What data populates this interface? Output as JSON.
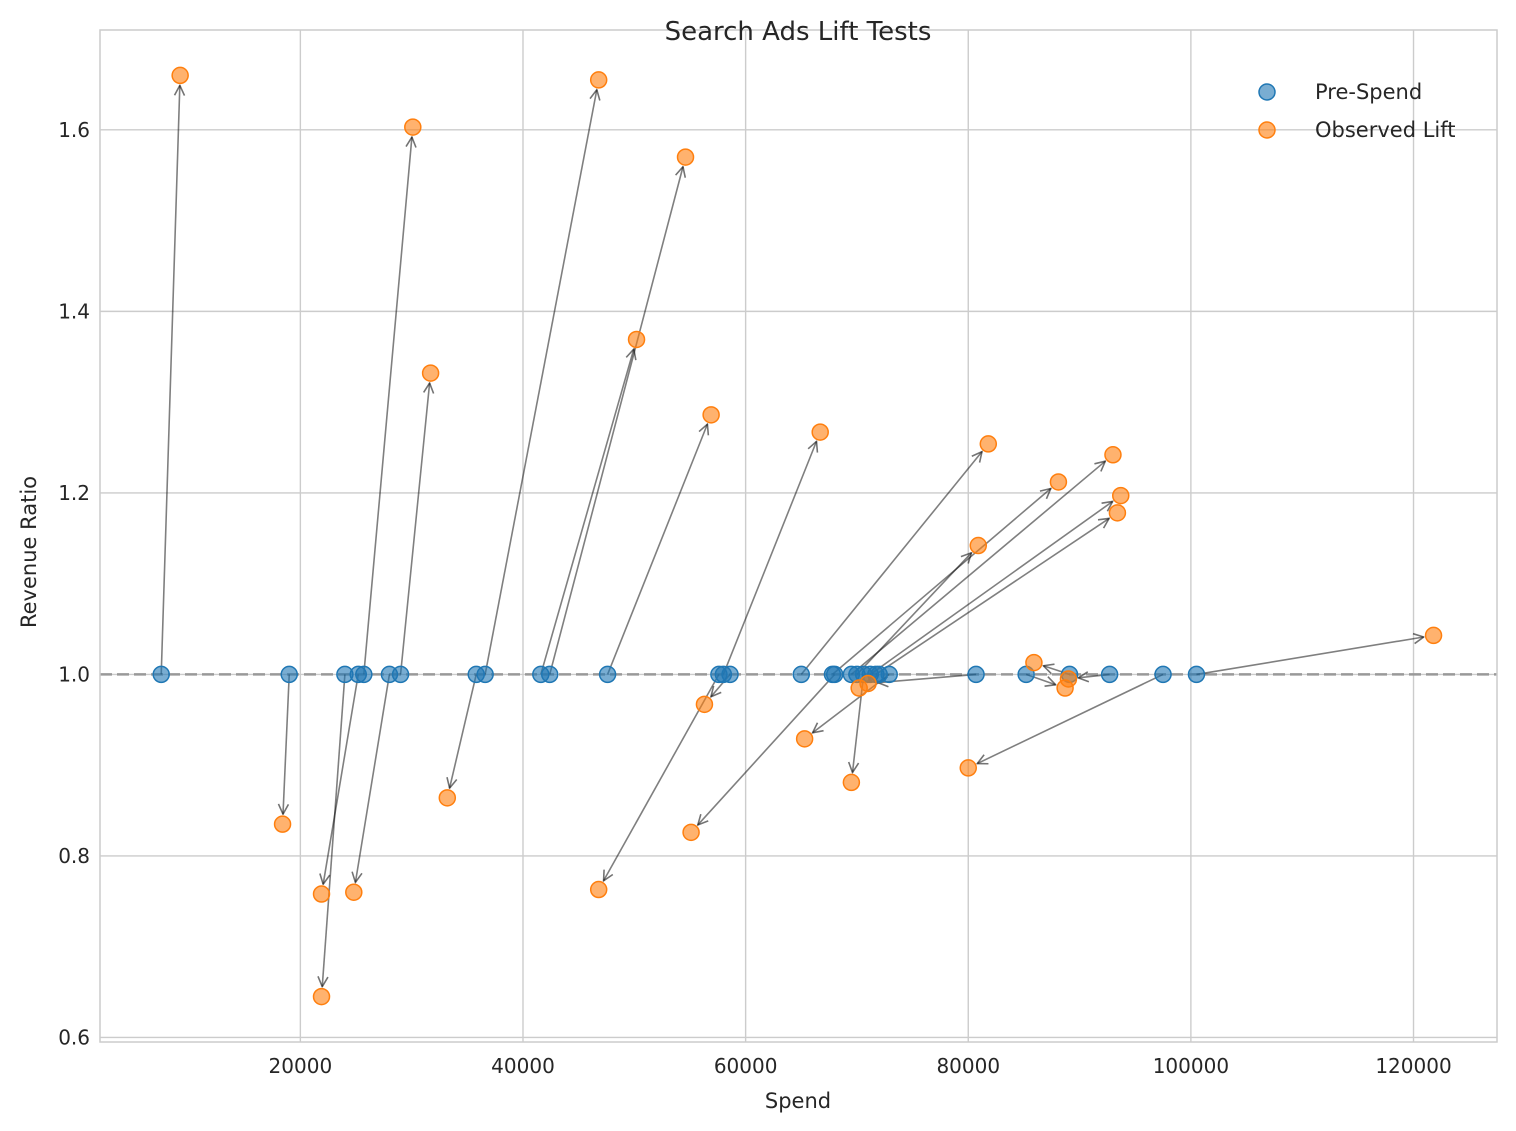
{
  "chart_data": {
    "type": "scatter",
    "title": "Search Ads Lift Tests",
    "xlabel": "Spend",
    "ylabel": "Revenue Ratio",
    "xlim": [
      2000,
      127500
    ],
    "ylim": [
      0.595,
      1.71
    ],
    "xticks": [
      20000,
      40000,
      60000,
      80000,
      100000,
      120000
    ],
    "yticks": [
      0.6,
      0.8,
      1.0,
      1.2,
      1.4,
      1.6
    ],
    "xtick_labels": [
      "20000",
      "40000",
      "60000",
      "80000",
      "100000",
      "120000"
    ],
    "ytick_labels": [
      "0.6",
      "0.8",
      "1.0",
      "1.2",
      "1.4",
      "1.6"
    ],
    "grid": true,
    "legend": "top-right",
    "reference_line": {
      "y": 1.0,
      "style": "dashed",
      "color": "#999999"
    },
    "series": [
      {
        "name": "Pre-Spend",
        "color": "#1f77b4"
      },
      {
        "name": "Observed Lift",
        "color": "#ff7f0e"
      }
    ],
    "tests": [
      {
        "pre": [
          7500,
          1.0
        ],
        "post": [
          9200,
          1.66
        ]
      },
      {
        "pre": [
          19000,
          1.0
        ],
        "post": [
          18400,
          0.835
        ]
      },
      {
        "pre": [
          24000,
          1.0
        ],
        "post": [
          21900,
          0.645
        ]
      },
      {
        "pre": [
          25200,
          1.0
        ],
        "post": [
          21900,
          0.758
        ]
      },
      {
        "pre": [
          25700,
          1.0
        ],
        "post": [
          30100,
          1.603
        ]
      },
      {
        "pre": [
          28000,
          1.0
        ],
        "post": [
          24800,
          0.76
        ]
      },
      {
        "pre": [
          29000,
          1.0
        ],
        "post": [
          31700,
          1.332
        ]
      },
      {
        "pre": [
          35800,
          1.0
        ],
        "post": [
          33200,
          0.864
        ]
      },
      {
        "pre": [
          36600,
          1.0
        ],
        "post": [
          46800,
          1.655
        ]
      },
      {
        "pre": [
          41600,
          1.0
        ],
        "post": [
          50200,
          1.369
        ]
      },
      {
        "pre": [
          42400,
          1.0
        ],
        "post": [
          54600,
          1.57
        ]
      },
      {
        "pre": [
          47600,
          1.0
        ],
        "post": [
          56900,
          1.286
        ]
      },
      {
        "pre": [
          57600,
          1.0
        ],
        "post": [
          46800,
          0.763
        ]
      },
      {
        "pre": [
          58000,
          1.0
        ],
        "post": [
          66700,
          1.267
        ]
      },
      {
        "pre": [
          58600,
          1.0
        ],
        "post": [
          56300,
          0.967
        ]
      },
      {
        "pre": [
          65000,
          1.0
        ],
        "post": [
          81800,
          1.254
        ]
      },
      {
        "pre": [
          67800,
          1.0
        ],
        "post": [
          88100,
          1.212
        ]
      },
      {
        "pre": [
          68000,
          1.0
        ],
        "post": [
          55100,
          0.826
        ]
      },
      {
        "pre": [
          69500,
          1.0
        ],
        "post": [
          93000,
          1.242
        ]
      },
      {
        "pre": [
          70000,
          1.0
        ],
        "post": [
          80900,
          1.142
        ]
      },
      {
        "pre": [
          70600,
          1.0
        ],
        "post": [
          69500,
          0.881
        ]
      },
      {
        "pre": [
          71200,
          1.0
        ],
        "post": [
          93700,
          1.197
        ]
      },
      {
        "pre": [
          71700,
          1.0
        ],
        "post": [
          93400,
          1.178
        ]
      },
      {
        "pre": [
          72000,
          1.0
        ],
        "post": [
          70200,
          0.985
        ]
      },
      {
        "pre": [
          72900,
          1.0
        ],
        "post": [
          65300,
          0.929
        ]
      },
      {
        "pre": [
          80700,
          1.0
        ],
        "post": [
          71000,
          0.99
        ]
      },
      {
        "pre": [
          85200,
          1.0
        ],
        "post": [
          88700,
          0.985
        ]
      },
      {
        "pre": [
          89100,
          1.0
        ],
        "post": [
          85900,
          1.013
        ]
      },
      {
        "pre": [
          92700,
          1.0
        ],
        "post": [
          89000,
          0.995
        ]
      },
      {
        "pre": [
          97500,
          1.0
        ],
        "post": [
          80000,
          0.897
        ]
      },
      {
        "pre": [
          100500,
          1.0
        ],
        "post": [
          121800,
          1.043
        ]
      }
    ]
  }
}
